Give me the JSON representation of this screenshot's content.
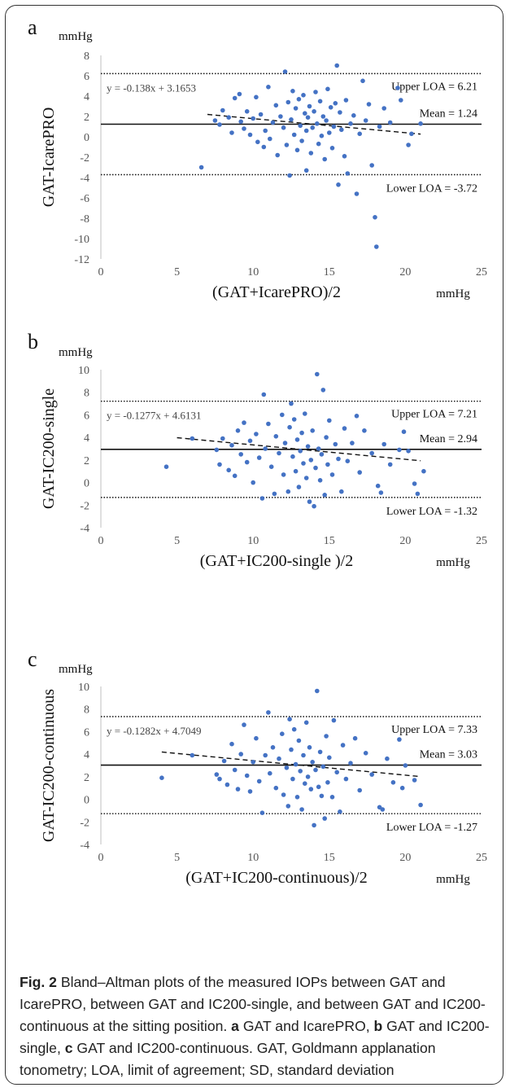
{
  "chart_data": [
    {
      "type": "scatter",
      "panel_label": "a",
      "unit_y": "mmHg",
      "unit_x": "mmHg",
      "ylabel": "GAT-IcarePRO",
      "xlabel": "(GAT+IcarePRO)/2",
      "xlim": [
        0,
        25
      ],
      "ylim": [
        -12,
        8
      ],
      "xticks": [
        0,
        5,
        10,
        15,
        20,
        25
      ],
      "yticks": [
        8,
        6,
        4,
        2,
        0,
        -2,
        -4,
        -6,
        -8,
        -10,
        -12
      ],
      "mean": 1.24,
      "upper_loa": 6.21,
      "lower_loa": -3.72,
      "mean_label": "Mean = 1.24",
      "upper_label": "Upper LOA = 6.21",
      "lower_label": "Lower LOA = -3.72",
      "regression": {
        "slope": -0.138,
        "intercept": 3.1653,
        "label": "y = -0.138x + 3.1653",
        "x_range": [
          7,
          21
        ]
      },
      "point_color": "#4472C4",
      "points": [
        [
          6.6,
          -3.0
        ],
        [
          7.5,
          1.6
        ],
        [
          7.8,
          1.2
        ],
        [
          8.0,
          2.6
        ],
        [
          8.4,
          1.9
        ],
        [
          8.6,
          0.4
        ],
        [
          8.8,
          3.8
        ],
        [
          9.1,
          4.2
        ],
        [
          9.2,
          1.5
        ],
        [
          9.4,
          0.8
        ],
        [
          9.6,
          2.5
        ],
        [
          9.8,
          0.2
        ],
        [
          10.0,
          1.8
        ],
        [
          10.2,
          3.9
        ],
        [
          10.3,
          -0.5
        ],
        [
          10.5,
          2.2
        ],
        [
          10.7,
          -1.0
        ],
        [
          10.8,
          0.6
        ],
        [
          11.0,
          4.9
        ],
        [
          11.1,
          -0.2
        ],
        [
          11.3,
          1.4
        ],
        [
          11.5,
          3.1
        ],
        [
          11.6,
          -1.8
        ],
        [
          11.8,
          2.0
        ],
        [
          12.0,
          0.9
        ],
        [
          12.1,
          6.4
        ],
        [
          12.2,
          -0.8
        ],
        [
          12.3,
          3.4
        ],
        [
          12.4,
          -3.8
        ],
        [
          12.5,
          1.7
        ],
        [
          12.6,
          4.5
        ],
        [
          12.7,
          0.2
        ],
        [
          12.8,
          2.8
        ],
        [
          12.9,
          -1.3
        ],
        [
          13.0,
          3.7
        ],
        [
          13.1,
          1.1
        ],
        [
          13.2,
          -0.4
        ],
        [
          13.3,
          4.1
        ],
        [
          13.4,
          2.3
        ],
        [
          13.5,
          -3.3
        ],
        [
          13.5,
          0.6
        ],
        [
          13.6,
          1.9
        ],
        [
          13.7,
          3.0
        ],
        [
          13.8,
          -1.6
        ],
        [
          13.9,
          0.9
        ],
        [
          14.0,
          2.5
        ],
        [
          14.1,
          4.4
        ],
        [
          14.2,
          1.3
        ],
        [
          14.3,
          -0.7
        ],
        [
          14.4,
          3.5
        ],
        [
          14.5,
          0.1
        ],
        [
          14.6,
          2.0
        ],
        [
          14.7,
          -2.2
        ],
        [
          14.8,
          1.6
        ],
        [
          14.9,
          4.7
        ],
        [
          15.0,
          0.4
        ],
        [
          15.1,
          2.9
        ],
        [
          15.2,
          -1.1
        ],
        [
          15.3,
          1.0
        ],
        [
          15.4,
          3.3
        ],
        [
          15.5,
          7.0
        ],
        [
          15.6,
          -4.7
        ],
        [
          15.7,
          2.4
        ],
        [
          15.8,
          0.7
        ],
        [
          16.0,
          -1.9
        ],
        [
          16.1,
          3.6
        ],
        [
          16.2,
          -3.6
        ],
        [
          16.4,
          1.3
        ],
        [
          16.6,
          2.1
        ],
        [
          16.8,
          -5.6
        ],
        [
          17.0,
          0.3
        ],
        [
          17.2,
          5.5
        ],
        [
          17.4,
          1.6
        ],
        [
          17.6,
          3.2
        ],
        [
          17.8,
          -2.8
        ],
        [
          18.0,
          -7.9
        ],
        [
          18.1,
          -10.8
        ],
        [
          18.3,
          1.0
        ],
        [
          18.6,
          2.8
        ],
        [
          19.0,
          1.4
        ],
        [
          19.5,
          4.8
        ],
        [
          19.7,
          3.6
        ],
        [
          20.2,
          -0.8
        ],
        [
          20.4,
          0.3
        ],
        [
          21.0,
          1.3
        ]
      ]
    },
    {
      "type": "scatter",
      "panel_label": "b",
      "unit_y": "mmHg",
      "unit_x": "mmHg",
      "ylabel": "GAT-IC200-single",
      "xlabel": "(GAT+IC200-single )/2",
      "xlim": [
        0,
        25
      ],
      "ylim": [
        -4,
        10
      ],
      "xticks": [
        0,
        5,
        10,
        15,
        20,
        25
      ],
      "yticks": [
        10,
        8,
        6,
        4,
        2,
        0,
        -2,
        -4
      ],
      "mean": 2.94,
      "upper_loa": 7.21,
      "lower_loa": -1.32,
      "mean_label": "Mean = 2.94",
      "upper_label": "Upper LOA = 7.21",
      "lower_label": "Lower LOA = -1.32",
      "regression": {
        "slope": -0.1277,
        "intercept": 4.6131,
        "label": "y = -0.1277x + 4.6131",
        "x_range": [
          5,
          21
        ]
      },
      "point_color": "#4472C4",
      "points": [
        [
          4.3,
          1.4
        ],
        [
          6.0,
          3.9
        ],
        [
          7.6,
          2.9
        ],
        [
          7.8,
          1.6
        ],
        [
          8.0,
          3.9
        ],
        [
          8.4,
          1.1
        ],
        [
          8.6,
          3.3
        ],
        [
          8.8,
          0.6
        ],
        [
          9.0,
          4.6
        ],
        [
          9.2,
          2.5
        ],
        [
          9.4,
          5.3
        ],
        [
          9.6,
          1.8
        ],
        [
          9.8,
          3.7
        ],
        [
          10.0,
          0.0
        ],
        [
          10.2,
          4.3
        ],
        [
          10.4,
          2.2
        ],
        [
          10.6,
          -1.4
        ],
        [
          10.7,
          7.8
        ],
        [
          10.8,
          3.0
        ],
        [
          11.0,
          5.2
        ],
        [
          11.2,
          1.4
        ],
        [
          11.4,
          -1.0
        ],
        [
          11.5,
          4.1
        ],
        [
          11.7,
          2.6
        ],
        [
          11.9,
          6.0
        ],
        [
          12.0,
          0.7
        ],
        [
          12.1,
          3.5
        ],
        [
          12.3,
          -0.8
        ],
        [
          12.4,
          4.9
        ],
        [
          12.5,
          7.0
        ],
        [
          12.6,
          2.3
        ],
        [
          12.7,
          5.6
        ],
        [
          12.8,
          1.0
        ],
        [
          12.9,
          3.8
        ],
        [
          13.0,
          -0.4
        ],
        [
          13.1,
          2.8
        ],
        [
          13.2,
          4.4
        ],
        [
          13.3,
          1.7
        ],
        [
          13.4,
          6.1
        ],
        [
          13.5,
          0.4
        ],
        [
          13.6,
          3.2
        ],
        [
          13.7,
          -1.7
        ],
        [
          13.8,
          2.0
        ],
        [
          13.9,
          4.6
        ],
        [
          14.0,
          -2.1
        ],
        [
          14.1,
          1.3
        ],
        [
          14.2,
          9.6
        ],
        [
          14.3,
          3.0
        ],
        [
          14.4,
          0.2
        ],
        [
          14.5,
          2.5
        ],
        [
          14.6,
          8.2
        ],
        [
          14.7,
          -1.1
        ],
        [
          14.8,
          4.0
        ],
        [
          14.9,
          1.6
        ],
        [
          15.0,
          5.5
        ],
        [
          15.2,
          0.7
        ],
        [
          15.4,
          3.4
        ],
        [
          15.6,
          2.1
        ],
        [
          15.8,
          -0.8
        ],
        [
          16.0,
          4.8
        ],
        [
          16.2,
          1.9
        ],
        [
          16.5,
          3.5
        ],
        [
          16.8,
          5.9
        ],
        [
          17.0,
          0.9
        ],
        [
          17.3,
          4.6
        ],
        [
          17.8,
          2.6
        ],
        [
          18.2,
          -0.3
        ],
        [
          18.4,
          -0.9
        ],
        [
          18.6,
          3.4
        ],
        [
          19.0,
          1.6
        ],
        [
          19.6,
          2.9
        ],
        [
          19.9,
          4.5
        ],
        [
          20.2,
          2.8
        ],
        [
          20.6,
          -0.1
        ],
        [
          20.8,
          -1.0
        ],
        [
          21.2,
          1.0
        ]
      ]
    },
    {
      "type": "scatter",
      "panel_label": "c",
      "unit_y": "mmHg",
      "unit_x": "mmHg",
      "ylabel": "GAT-IC200-continuous",
      "xlabel": "(GAT+IC200-continuous)/2",
      "xlim": [
        0,
        25
      ],
      "ylim": [
        -4,
        10
      ],
      "xticks": [
        0,
        5,
        10,
        15,
        20,
        25
      ],
      "yticks": [
        10,
        8,
        6,
        4,
        2,
        0,
        -2,
        -4
      ],
      "mean": 3.03,
      "upper_loa": 7.33,
      "lower_loa": -1.27,
      "mean_label": "Mean = 3.03",
      "upper_label": "Upper LOA = 7.33",
      "lower_label": "Lower LOA = -1.27",
      "regression": {
        "slope": -0.1282,
        "intercept": 4.7049,
        "label": "y = -0.1282x + 4.7049",
        "x_range": [
          4,
          21
        ]
      },
      "point_color": "#4472C4",
      "points": [
        [
          4.0,
          1.9
        ],
        [
          6.0,
          3.9
        ],
        [
          7.6,
          2.2
        ],
        [
          7.8,
          1.8
        ],
        [
          8.1,
          3.4
        ],
        [
          8.3,
          1.3
        ],
        [
          8.6,
          4.9
        ],
        [
          8.8,
          2.6
        ],
        [
          9.0,
          0.9
        ],
        [
          9.2,
          4.0
        ],
        [
          9.4,
          6.6
        ],
        [
          9.6,
          2.1
        ],
        [
          9.8,
          0.7
        ],
        [
          10.0,
          3.3
        ],
        [
          10.2,
          5.4
        ],
        [
          10.4,
          1.6
        ],
        [
          10.6,
          -1.2
        ],
        [
          10.8,
          3.9
        ],
        [
          11.0,
          7.7
        ],
        [
          11.1,
          2.3
        ],
        [
          11.3,
          4.6
        ],
        [
          11.5,
          1.0
        ],
        [
          11.7,
          3.6
        ],
        [
          11.9,
          5.8
        ],
        [
          12.0,
          0.4
        ],
        [
          12.2,
          2.8
        ],
        [
          12.3,
          -0.6
        ],
        [
          12.4,
          7.1
        ],
        [
          12.5,
          4.4
        ],
        [
          12.6,
          1.8
        ],
        [
          12.7,
          6.2
        ],
        [
          12.8,
          3.1
        ],
        [
          12.9,
          0.2
        ],
        [
          13.0,
          5.2
        ],
        [
          13.1,
          2.5
        ],
        [
          13.2,
          -0.9
        ],
        [
          13.3,
          3.9
        ],
        [
          13.4,
          1.4
        ],
        [
          13.5,
          6.8
        ],
        [
          13.6,
          2.0
        ],
        [
          13.7,
          4.6
        ],
        [
          13.8,
          0.9
        ],
        [
          13.9,
          3.3
        ],
        [
          14.0,
          -2.3
        ],
        [
          14.1,
          2.6
        ],
        [
          14.2,
          9.6
        ],
        [
          14.3,
          1.1
        ],
        [
          14.4,
          4.2
        ],
        [
          14.5,
          0.3
        ],
        [
          14.6,
          2.9
        ],
        [
          14.7,
          -1.7
        ],
        [
          14.8,
          5.6
        ],
        [
          14.9,
          1.5
        ],
        [
          15.0,
          3.7
        ],
        [
          15.2,
          0.2
        ],
        [
          15.3,
          7.0
        ],
        [
          15.5,
          2.4
        ],
        [
          15.7,
          -1.1
        ],
        [
          15.9,
          4.8
        ],
        [
          16.1,
          1.8
        ],
        [
          16.4,
          3.2
        ],
        [
          16.7,
          5.4
        ],
        [
          17.0,
          0.8
        ],
        [
          17.4,
          4.1
        ],
        [
          17.8,
          2.2
        ],
        [
          18.3,
          -0.7
        ],
        [
          18.5,
          -0.9
        ],
        [
          18.8,
          3.6
        ],
        [
          19.2,
          1.5
        ],
        [
          19.6,
          5.3
        ],
        [
          19.8,
          1.0
        ],
        [
          20.0,
          3.0
        ],
        [
          20.6,
          1.7
        ],
        [
          21.0,
          -0.5
        ]
      ]
    }
  ],
  "caption": {
    "label": "Fig. 2",
    "text": " Bland–Altman plots of the measured IOPs between GAT and IcarePRO, between GAT and IC200-single, and between GAT and IC200-continuous at the sitting position. ",
    "a": "a",
    "a_text": " GAT and IcarePRO, ",
    "b": "b",
    "b_text": " GAT and IC200-single, ",
    "c": "c",
    "c_text": " GAT and IC200-continuous. GAT, Goldmann applanation tonometry; LOA, limit of agreement; SD, standard deviation"
  }
}
